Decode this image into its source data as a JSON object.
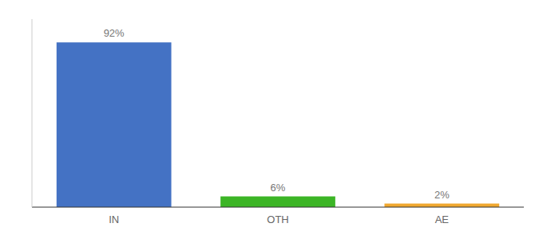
{
  "chart_data": {
    "type": "bar",
    "categories": [
      "IN",
      "OTH",
      "AE"
    ],
    "values": [
      92,
      6,
      2
    ],
    "value_labels": [
      "92%",
      "6%",
      "2%"
    ],
    "data_labels": true,
    "colors": [
      "#4472c4",
      "#3cb526",
      "#f0a830"
    ],
    "ylim": [
      0,
      105
    ],
    "tick_labels": "x",
    "grid": false
  }
}
